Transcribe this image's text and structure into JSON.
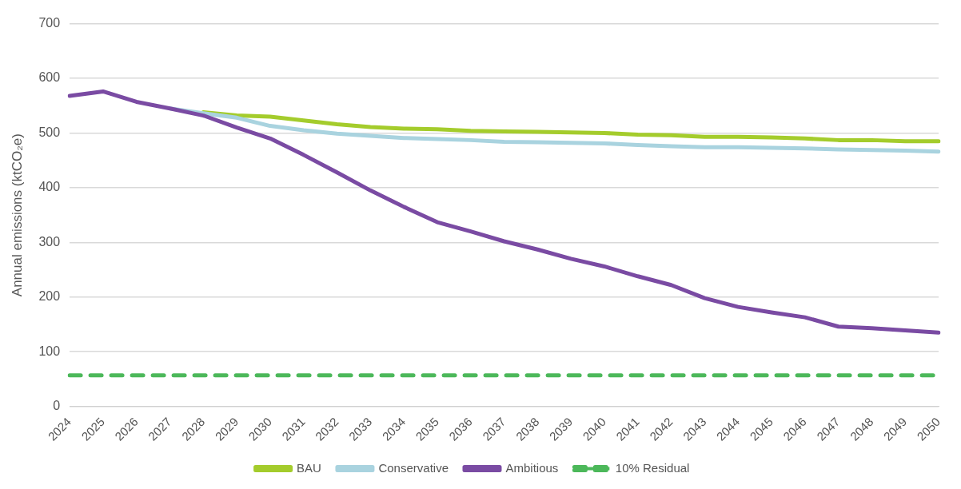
{
  "chart_data": {
    "type": "line",
    "ylabel": "Annual emissions (ktCO₂e)",
    "categories": [
      "2024",
      "2025",
      "2026",
      "2027",
      "2028",
      "2029",
      "2030",
      "2031",
      "2032",
      "2033",
      "2034",
      "2035",
      "2036",
      "2037",
      "2038",
      "2039",
      "2040",
      "2041",
      "2042",
      "2043",
      "2044",
      "2045",
      "2046",
      "2047",
      "2048",
      "2049",
      "2050"
    ],
    "series": [
      {
        "name": "BAU",
        "color": "#a4cc2c",
        "line_style": "solid",
        "values": [
          null,
          null,
          null,
          null,
          538,
          532,
          530,
          523,
          516,
          511,
          508,
          507,
          504,
          503,
          502,
          501,
          500,
          497,
          496,
          493,
          493,
          492,
          490,
          487,
          487,
          485,
          485
        ]
      },
      {
        "name": "Conservative",
        "color": "#a9d3df",
        "line_style": "solid",
        "values": [
          null,
          null,
          null,
          545,
          536,
          528,
          513,
          505,
          499,
          495,
          491,
          489,
          487,
          484,
          483,
          482,
          481,
          478,
          476,
          474,
          474,
          473,
          472,
          470,
          469,
          468,
          466
        ]
      },
      {
        "name": "Ambitious",
        "color": "#7a4ba3",
        "line_style": "solid",
        "values": [
          568,
          576,
          557,
          545,
          532,
          510,
          490,
          460,
          428,
          395,
          365,
          337,
          320,
          302,
          287,
          270,
          256,
          238,
          222,
          198,
          182,
          172,
          163,
          146,
          143,
          139,
          135
        ]
      },
      {
        "name": "10% Residual",
        "color": "#4cb85a",
        "line_style": "dashed",
        "values": [
          57,
          57,
          57,
          57,
          57,
          57,
          57,
          57,
          57,
          57,
          57,
          57,
          57,
          57,
          57,
          57,
          57,
          57,
          57,
          57,
          57,
          57,
          57,
          57,
          57,
          57,
          57
        ]
      }
    ],
    "ylim": [
      0,
      700
    ],
    "yticks": [
      0,
      100,
      200,
      300,
      400,
      500,
      600,
      700
    ],
    "grid": "y",
    "legend": "bottom",
    "marker": "none"
  }
}
